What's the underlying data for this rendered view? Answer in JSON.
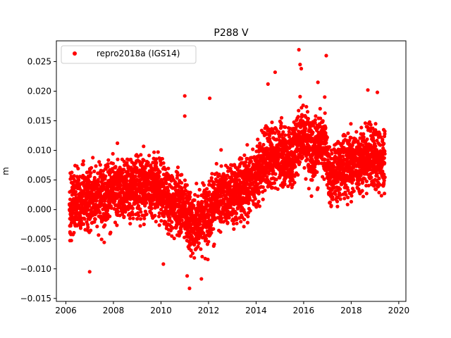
{
  "chart_data": {
    "type": "scatter",
    "title": "P288 V",
    "xlabel": "",
    "ylabel": "m",
    "xlim": [
      2005.6,
      2020.3
    ],
    "ylim": [
      -0.0155,
      0.0285
    ],
    "xticks": [
      2006,
      2008,
      2010,
      2012,
      2014,
      2016,
      2018,
      2020
    ],
    "xtick_labels": [
      "2006",
      "2008",
      "2010",
      "2012",
      "2014",
      "2016",
      "2018",
      "2020"
    ],
    "yticks": [
      -0.015,
      -0.01,
      -0.005,
      0.0,
      0.005,
      0.01,
      0.015,
      0.02,
      0.025
    ],
    "ytick_labels": [
      "−0.015",
      "−0.010",
      "−0.005",
      "0.000",
      "0.005",
      "0.010",
      "0.015",
      "0.020",
      "0.025"
    ],
    "grid": false,
    "legend_position": "upper left",
    "marker_color": "#ff0000",
    "series": [
      {
        "name": "repro2018a (IGS14)",
        "color": "#ff0000",
        "marker": "circle",
        "x_start": 2006.15,
        "x_end": 2019.42,
        "trend_x": [
          2006.15,
          2007.0,
          2008.0,
          2009.0,
          2009.8,
          2010.3,
          2010.9,
          2011.3,
          2011.8,
          2012.5,
          2013.2,
          2013.8,
          2014.3,
          2015.0,
          2015.5,
          2015.9,
          2016.4,
          2016.9,
          2017.1,
          2017.5,
          2018.0,
          2018.7,
          2019.42
        ],
        "trend_y": [
          0.001,
          0.002,
          0.003,
          0.004,
          0.0045,
          0.001,
          0.001,
          -0.003,
          -0.001,
          0.002,
          0.003,
          0.005,
          0.008,
          0.0095,
          0.0085,
          0.013,
          0.01,
          0.011,
          0.005,
          0.007,
          0.008,
          0.009,
          0.008
        ],
        "scatter_std": 0.004,
        "outliers": [
          {
            "x": 2015.8,
            "y": 0.027
          },
          {
            "x": 2016.95,
            "y": 0.026
          },
          {
            "x": 2015.85,
            "y": 0.0245
          },
          {
            "x": 2014.8,
            "y": 0.0232
          },
          {
            "x": 2015.9,
            "y": 0.0238
          },
          {
            "x": 2016.6,
            "y": 0.0215
          },
          {
            "x": 2014.5,
            "y": 0.0212
          },
          {
            "x": 2018.7,
            "y": 0.0202
          },
          {
            "x": 2019.1,
            "y": 0.0198
          },
          {
            "x": 2011.0,
            "y": 0.0192
          },
          {
            "x": 2012.05,
            "y": 0.0188
          },
          {
            "x": 2011.0,
            "y": 0.0158
          },
          {
            "x": 2007.0,
            "y": -0.0105
          },
          {
            "x": 2011.2,
            "y": -0.0133
          },
          {
            "x": 2011.7,
            "y": -0.0117
          },
          {
            "x": 2010.1,
            "y": -0.0092
          },
          {
            "x": 2011.1,
            "y": -0.0112
          }
        ]
      }
    ]
  }
}
